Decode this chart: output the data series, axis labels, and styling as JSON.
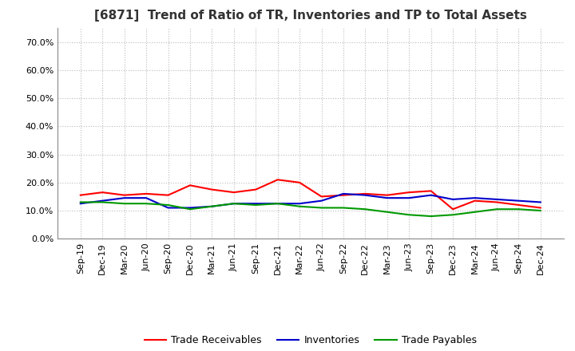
{
  "title": "[6871]  Trend of Ratio of TR, Inventories and TP to Total Assets",
  "x_labels": [
    "Sep-19",
    "Dec-19",
    "Mar-20",
    "Jun-20",
    "Sep-20",
    "Dec-20",
    "Mar-21",
    "Jun-21",
    "Sep-21",
    "Dec-21",
    "Mar-22",
    "Jun-22",
    "Sep-22",
    "Dec-22",
    "Mar-23",
    "Jun-23",
    "Sep-23",
    "Dec-23",
    "Mar-24",
    "Jun-24",
    "Sep-24",
    "Dec-24"
  ],
  "trade_receivables": [
    15.5,
    16.5,
    15.5,
    16.0,
    15.5,
    19.0,
    17.5,
    16.5,
    17.5,
    21.0,
    20.0,
    15.0,
    15.5,
    16.0,
    15.5,
    16.5,
    17.0,
    10.5,
    13.5,
    13.0,
    12.0,
    11.0
  ],
  "inventories": [
    12.5,
    13.5,
    14.5,
    14.5,
    11.0,
    11.0,
    11.5,
    12.5,
    12.5,
    12.5,
    12.5,
    13.5,
    16.0,
    15.5,
    14.5,
    14.5,
    15.5,
    14.0,
    14.5,
    14.0,
    13.5,
    13.0
  ],
  "trade_payables": [
    13.0,
    13.0,
    12.5,
    12.5,
    12.0,
    10.5,
    11.5,
    12.5,
    12.0,
    12.5,
    11.5,
    11.0,
    11.0,
    10.5,
    9.5,
    8.5,
    8.0,
    8.5,
    9.5,
    10.5,
    10.5,
    10.0
  ],
  "tr_color": "#ff0000",
  "inv_color": "#0000cc",
  "tp_color": "#009900",
  "ylim_min": 0,
  "ylim_max": 75,
  "yticks": [
    0,
    10,
    20,
    30,
    40,
    50,
    60,
    70
  ],
  "ytick_labels": [
    "0.0%",
    "10.0%",
    "20.0%",
    "30.0%",
    "40.0%",
    "50.0%",
    "60.0%",
    "70.0%"
  ],
  "legend_labels": [
    "Trade Receivables",
    "Inventories",
    "Trade Payables"
  ],
  "background_color": "#ffffff",
  "plot_bg_color": "#ffffff",
  "grid_color": "#bbbbbb",
  "title_fontsize": 11,
  "tick_fontsize": 8,
  "legend_fontsize": 9
}
